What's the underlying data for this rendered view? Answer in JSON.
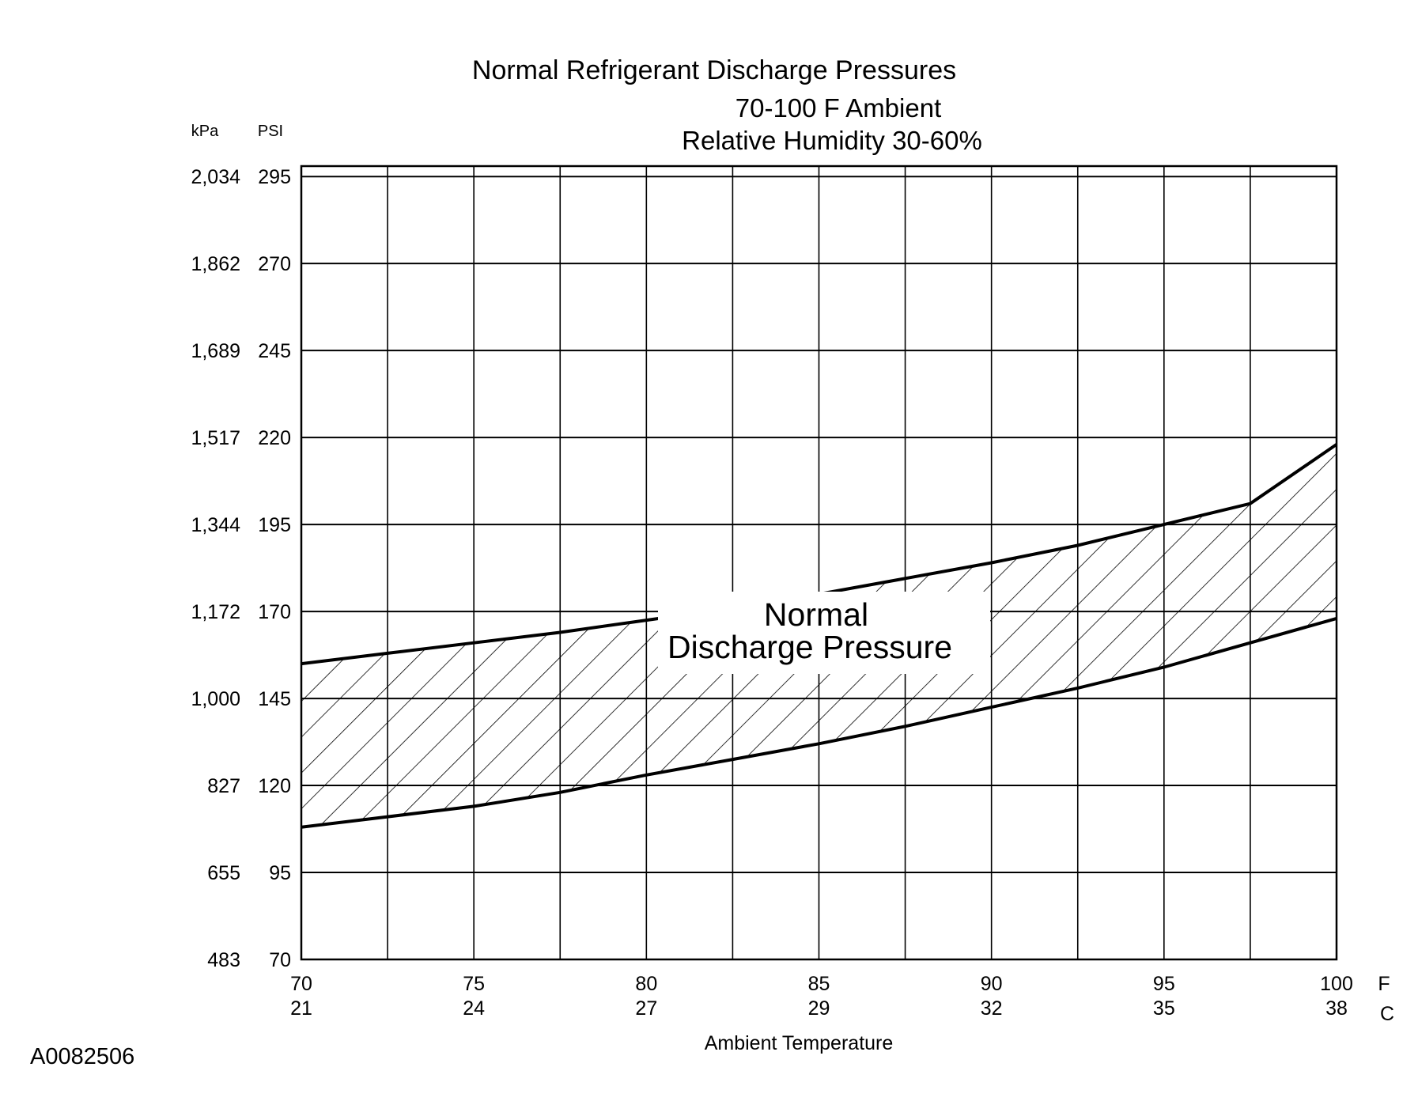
{
  "chart_data": {
    "type": "area",
    "title": "Normal  Refrigerant  Discharge  Pressures",
    "subtitle_lines": [
      "70-100 F Ambient",
      "Relative Humidity 30-60%"
    ],
    "xlabel": "Ambient Temperature",
    "x_unit_primary": "F",
    "x_unit_secondary": "C",
    "y_unit_primary": "PSI",
    "y_unit_secondary": "kPa",
    "x_ticks": [
      {
        "f": 70,
        "fl": "70",
        "cl": "21"
      },
      {
        "f": 75,
        "fl": "75",
        "cl": "24"
      },
      {
        "f": 80,
        "fl": "80",
        "cl": "27"
      },
      {
        "f": 85,
        "fl": "85",
        "cl": "29"
      },
      {
        "f": 90,
        "fl": "90",
        "cl": "32"
      },
      {
        "f": 95,
        "fl": "95",
        "cl": "35"
      },
      {
        "f": 100,
        "fl": "100",
        "cl": "38"
      }
    ],
    "x_minor_grid": [
      72.5,
      77.5,
      82.5,
      87.5,
      92.5,
      97.5
    ],
    "y_ticks": [
      {
        "psi": 70,
        "pl": "70",
        "kl": "483"
      },
      {
        "psi": 95,
        "pl": "95",
        "kl": "655"
      },
      {
        "psi": 120,
        "pl": "120",
        "kl": "827"
      },
      {
        "psi": 145,
        "pl": "145",
        "kl": "1,000"
      },
      {
        "psi": 170,
        "pl": "170",
        "kl": "1,172"
      },
      {
        "psi": 195,
        "pl": "195",
        "kl": "1,344"
      },
      {
        "psi": 220,
        "pl": "220",
        "kl": "1,517"
      },
      {
        "psi": 245,
        "pl": "245",
        "kl": "1,689"
      },
      {
        "psi": 270,
        "pl": "270",
        "kl": "1,862"
      },
      {
        "psi": 295,
        "pl": "295",
        "kl": "2,034"
      }
    ],
    "xlim": [
      70,
      100
    ],
    "ylim": [
      70,
      298
    ],
    "grid": true,
    "band_label_lines": [
      "Normal",
      "Discharge Pressure"
    ],
    "series": [
      {
        "name": "",
        "x": [
          70,
          72.5,
          75,
          77.5,
          80,
          82.5,
          85,
          87.5,
          90,
          92.5,
          95,
          97.5,
          100
        ],
        "values": [
          108,
          111,
          114,
          118,
          123,
          127.5,
          132,
          137,
          142.5,
          148,
          154,
          161,
          168
        ]
      },
      {
        "name": "",
        "x": [
          70,
          72.5,
          75,
          77.5,
          80,
          82.5,
          85,
          87.5,
          90,
          92.5,
          95,
          97.5,
          100
        ],
        "values": [
          155,
          158,
          161,
          164,
          167.5,
          171,
          175,
          179.5,
          184,
          189,
          195,
          201,
          218
        ]
      }
    ]
  },
  "figure_id": "A0082506"
}
